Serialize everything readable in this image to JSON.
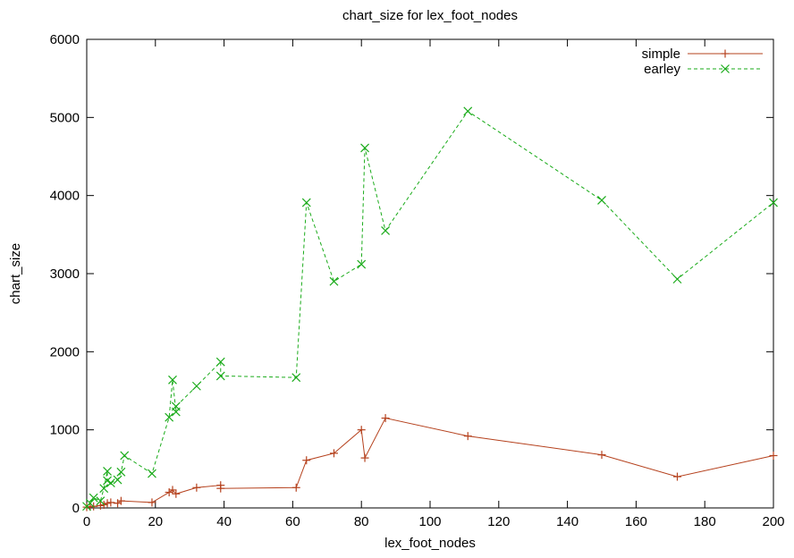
{
  "chart_data": {
    "type": "line",
    "title": "chart_size for lex_foot_nodes",
    "xlabel": "lex_foot_nodes",
    "ylabel": "chart_size",
    "xlim": [
      0,
      200
    ],
    "ylim": [
      0,
      6000
    ],
    "xticks": [
      0,
      20,
      40,
      60,
      80,
      100,
      120,
      140,
      160,
      180,
      200
    ],
    "yticks": [
      0,
      1000,
      2000,
      3000,
      4000,
      5000,
      6000
    ],
    "grid": false,
    "legend_position": "top-right",
    "series": [
      {
        "name": "simple",
        "color": "#b5411d",
        "marker": "plus",
        "line": "solid",
        "points": [
          [
            0,
            10
          ],
          [
            1,
            15
          ],
          [
            2,
            20
          ],
          [
            4,
            30
          ],
          [
            5,
            40
          ],
          [
            6,
            60
          ],
          [
            7,
            70
          ],
          [
            9,
            60
          ],
          [
            10,
            90
          ],
          [
            19,
            70
          ],
          [
            24,
            200
          ],
          [
            25,
            230
          ],
          [
            26,
            180
          ],
          [
            32,
            260
          ],
          [
            39,
            290
          ],
          [
            39,
            250
          ],
          [
            61,
            260
          ],
          [
            64,
            610
          ],
          [
            72,
            700
          ],
          [
            80,
            1000
          ],
          [
            81,
            640
          ],
          [
            87,
            1150
          ],
          [
            111,
            920
          ],
          [
            150,
            680
          ],
          [
            172,
            400
          ],
          [
            200,
            670
          ]
        ]
      },
      {
        "name": "earley",
        "color": "#1aab1a",
        "marker": "x",
        "line": "dashed",
        "points": [
          [
            0,
            20
          ],
          [
            1,
            60
          ],
          [
            2,
            130
          ],
          [
            4,
            90
          ],
          [
            5,
            250
          ],
          [
            6,
            470
          ],
          [
            6,
            350
          ],
          [
            7,
            320
          ],
          [
            9,
            360
          ],
          [
            10,
            460
          ],
          [
            11,
            670
          ],
          [
            19,
            440
          ],
          [
            24,
            1160
          ],
          [
            25,
            1640
          ],
          [
            26,
            1230
          ],
          [
            26,
            1300
          ],
          [
            32,
            1560
          ],
          [
            39,
            1870
          ],
          [
            39,
            1690
          ],
          [
            61,
            1670
          ],
          [
            64,
            3910
          ],
          [
            72,
            2900
          ],
          [
            80,
            3120
          ],
          [
            81,
            4610
          ],
          [
            87,
            3550
          ],
          [
            111,
            5080
          ],
          [
            150,
            3940
          ],
          [
            172,
            2930
          ],
          [
            200,
            3910
          ]
        ]
      }
    ]
  }
}
